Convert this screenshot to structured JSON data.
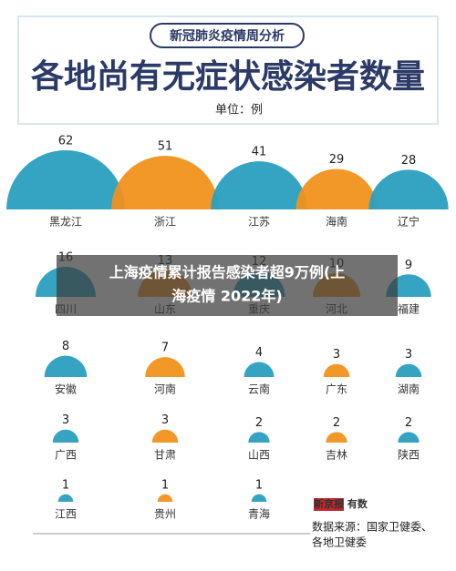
{
  "header": {
    "tag": "新冠肺炎疫情周分析",
    "title": "各地尚有无症状感染者数量",
    "unit": "单位：例"
  },
  "chart_data": {
    "type": "semicircle",
    "categories": [
      "黑龙江",
      "浙江",
      "江苏",
      "海南",
      "辽宁",
      "四川",
      "山东",
      "重庆",
      "河北",
      "福建",
      "安徽",
      "河南",
      "云南",
      "广东",
      "湖南",
      "广西",
      "甘肃",
      "山西",
      "吉林",
      "陕西",
      "江西",
      "贵州",
      "青海"
    ],
    "values": [
      62,
      51,
      41,
      29,
      28,
      16,
      13,
      12,
      10,
      9,
      8,
      7,
      4,
      3,
      3,
      3,
      3,
      2,
      2,
      2,
      1,
      1,
      1
    ],
    "colors": [
      "#2a9fc0",
      "#f0921e"
    ]
  },
  "footer": {
    "logo": "新京报 有数",
    "source_lines": [
      "数据来源：国家卫健委、",
      "各地卫健委"
    ]
  },
  "overlay": {
    "lines": [
      "上海疫情累计报告感染者超9万例(上",
      "海疫情 2022年)"
    ]
  }
}
